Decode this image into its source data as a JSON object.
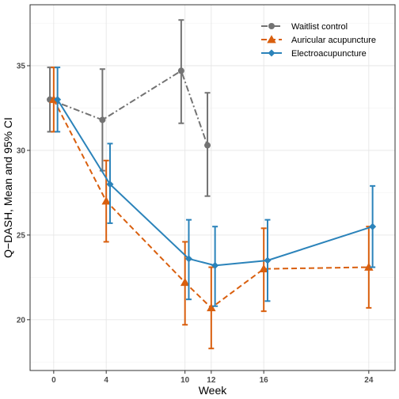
{
  "chart_data": {
    "type": "line",
    "xlabel": "Week",
    "ylabel": "Q−DASH, Mean and 95% CI",
    "xlim": [
      -1.8,
      26
    ],
    "ylim": [
      17,
      38.6
    ],
    "x_ticks": [
      0,
      4,
      10,
      12,
      16,
      24
    ],
    "y_ticks": [
      20,
      25,
      30,
      35
    ],
    "grid": true,
    "legend_position": "top-right",
    "series": [
      {
        "name": "Waitlist control",
        "color": "#737373",
        "marker": "circle",
        "line_style": "dashdot",
        "x": [
          0,
          4,
          10,
          12
        ],
        "y": [
          33.0,
          31.8,
          34.7,
          30.3
        ],
        "ci_low": [
          31.1,
          28.8,
          31.6,
          27.3
        ],
        "ci_high": [
          34.9,
          34.8,
          37.7,
          33.4
        ]
      },
      {
        "name": "Auricular acupuncture",
        "color": "#d95f0e",
        "marker": "triangle",
        "line_style": "dashed",
        "x": [
          0,
          4,
          10,
          12,
          16,
          24
        ],
        "y": [
          33.0,
          27.0,
          22.2,
          20.7,
          23.0,
          23.1
        ],
        "ci_low": [
          31.1,
          24.6,
          19.7,
          18.3,
          20.5,
          20.7
        ],
        "ci_high": [
          34.9,
          29.4,
          24.6,
          23.1,
          25.4,
          25.5
        ]
      },
      {
        "name": "Electroacupuncture",
        "color": "#2b83ba",
        "marker": "diamond",
        "line_style": "solid",
        "x": [
          0,
          4,
          10,
          12,
          16,
          24
        ],
        "y": [
          33.0,
          28.0,
          23.6,
          23.2,
          23.5,
          25.5
        ],
        "ci_low": [
          31.1,
          25.7,
          21.2,
          20.8,
          21.1,
          23.1
        ],
        "ci_high": [
          34.9,
          30.4,
          25.9,
          25.5,
          25.9,
          27.9
        ]
      }
    ]
  }
}
